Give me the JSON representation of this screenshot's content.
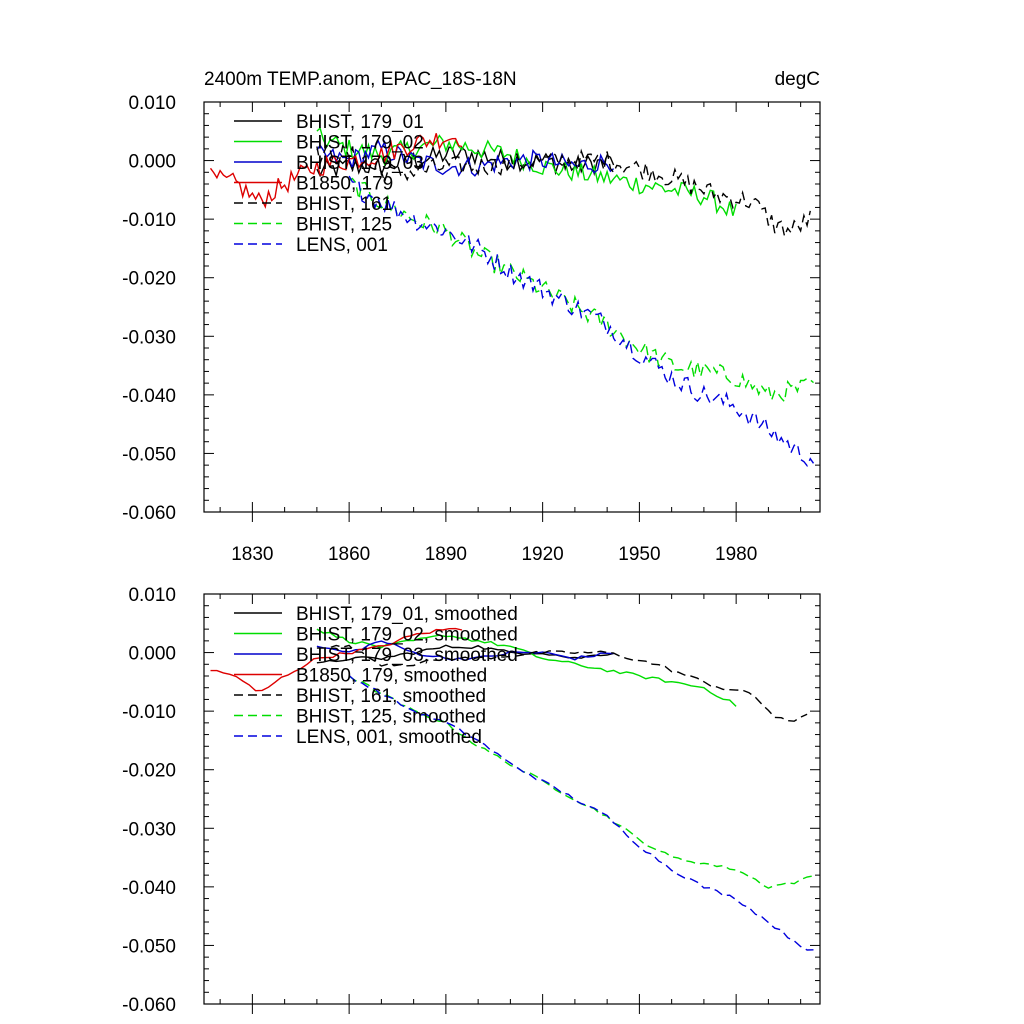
{
  "title_left": "2400m TEMP.anom, EPAC_18S-18N",
  "title_right": "degC",
  "chart_data": [
    {
      "type": "line",
      "title": "2400m TEMP.anom, EPAC_18S-18N",
      "units": "degC",
      "xlim": [
        1815,
        2006
      ],
      "ylim": [
        -0.06,
        0.01
      ],
      "x_ticks": [
        "1830",
        "1860",
        "1890",
        "1920",
        "1950",
        "1980"
      ],
      "y_ticks": [
        "0.010",
        "0.000",
        "-0.010",
        "-0.020",
        "-0.030",
        "-0.040",
        "-0.050",
        "-0.060"
      ],
      "series": [
        {
          "name": "BHIST, 179_01",
          "color": "#000000",
          "dash": "solid",
          "step": 1,
          "anchors": [
            [
              1850,
              -0.002
            ],
            [
              1860,
              -0.001
            ],
            [
              1870,
              -0.001
            ],
            [
              1880,
              0.0
            ],
            [
              1890,
              0.001
            ],
            [
              1900,
              0.001
            ],
            [
              1910,
              0.0
            ],
            [
              1920,
              0.0
            ],
            [
              1930,
              -0.001
            ],
            [
              1942,
              0.0
            ]
          ]
        },
        {
          "name": "BHIST, 179_02",
          "color": "#00dd00",
          "dash": "solid",
          "step": 1,
          "anchors": [
            [
              1850,
              0.004
            ],
            [
              1860,
              0.002
            ],
            [
              1870,
              0.001
            ],
            [
              1880,
              0.002
            ],
            [
              1890,
              0.003
            ],
            [
              1900,
              0.002
            ],
            [
              1910,
              0.001
            ],
            [
              1920,
              -0.001
            ],
            [
              1930,
              -0.002
            ],
            [
              1940,
              -0.003
            ],
            [
              1950,
              -0.004
            ],
            [
              1960,
              -0.005
            ],
            [
              1970,
              -0.006
            ],
            [
              1980,
              -0.009
            ]
          ]
        },
        {
          "name": "BHIST, 179_03",
          "color": "#0000cc",
          "dash": "solid",
          "step": 1,
          "anchors": [
            [
              1850,
              0.001
            ],
            [
              1860,
              0.0
            ],
            [
              1870,
              0.002
            ],
            [
              1880,
              0.0
            ],
            [
              1890,
              -0.001
            ],
            [
              1900,
              -0.001
            ],
            [
              1910,
              0.0
            ],
            [
              1920,
              0.0
            ],
            [
              1930,
              -0.001
            ],
            [
              1942,
              0.0
            ]
          ]
        },
        {
          "name": "B1850, 179",
          "color": "#dd0000",
          "dash": "solid",
          "step": 1,
          "anchors": [
            [
              1817,
              -0.003
            ],
            [
              1825,
              -0.004
            ],
            [
              1832,
              -0.007
            ],
            [
              1840,
              -0.004
            ],
            [
              1850,
              -0.001
            ],
            [
              1860,
              0.0
            ],
            [
              1870,
              0.001
            ],
            [
              1880,
              0.003
            ],
            [
              1890,
              0.004
            ],
            [
              1895,
              0.004
            ]
          ]
        },
        {
          "name": "BHIST, 161",
          "color": "#000000",
          "dash": "dashed",
          "step": 1,
          "anchors": [
            [
              1850,
              0.001
            ],
            [
              1860,
              0.001
            ],
            [
              1870,
              -0.002
            ],
            [
              1880,
              -0.002
            ],
            [
              1890,
              -0.001
            ],
            [
              1900,
              -0.001
            ],
            [
              1920,
              0.0
            ],
            [
              1940,
              0.0
            ],
            [
              1955,
              -0.002
            ],
            [
              1965,
              -0.004
            ],
            [
              1975,
              -0.006
            ],
            [
              1985,
              -0.007
            ],
            [
              1992,
              -0.011
            ],
            [
              1997,
              -0.012
            ],
            [
              2003,
              -0.01
            ]
          ]
        },
        {
          "name": "BHIST, 125",
          "color": "#00dd00",
          "dash": "dashed",
          "step": 1,
          "anchors": [
            [
              1860,
              -0.004
            ],
            [
              1870,
              -0.007
            ],
            [
              1880,
              -0.01
            ],
            [
              1890,
              -0.012
            ],
            [
              1900,
              -0.016
            ],
            [
              1910,
              -0.019
            ],
            [
              1920,
              -0.022
            ],
            [
              1930,
              -0.025
            ],
            [
              1940,
              -0.028
            ],
            [
              1950,
              -0.032
            ],
            [
              1960,
              -0.035
            ],
            [
              1970,
              -0.036
            ],
            [
              1980,
              -0.037
            ],
            [
              1990,
              -0.04
            ],
            [
              2000,
              -0.039
            ],
            [
              2004,
              -0.038
            ]
          ]
        },
        {
          "name": "LENS, 001",
          "color": "#0000dd",
          "dash": "dashed",
          "step": 1,
          "anchors": [
            [
              1860,
              -0.004
            ],
            [
              1870,
              -0.007
            ],
            [
              1880,
              -0.01
            ],
            [
              1890,
              -0.012
            ],
            [
              1900,
              -0.015
            ],
            [
              1910,
              -0.019
            ],
            [
              1920,
              -0.022
            ],
            [
              1930,
              -0.025
            ],
            [
              1940,
              -0.028
            ],
            [
              1950,
              -0.033
            ],
            [
              1960,
              -0.037
            ],
            [
              1970,
              -0.04
            ],
            [
              1980,
              -0.042
            ],
            [
              1990,
              -0.046
            ],
            [
              2000,
              -0.05
            ],
            [
              2004,
              -0.051
            ]
          ]
        }
      ]
    },
    {
      "type": "line",
      "title": "",
      "xlim": [
        1815,
        2006
      ],
      "ylim": [
        -0.06,
        0.01
      ],
      "y_ticks": [
        "0.010",
        "0.000",
        "-0.010",
        "-0.020",
        "-0.030",
        "-0.040",
        "-0.050",
        "-0.060"
      ],
      "series": [
        {
          "name": "BHIST, 179_01, smoothed",
          "color": "#000000",
          "dash": "solid",
          "step": 2,
          "anchors": [
            [
              1850,
              -0.002
            ],
            [
              1860,
              -0.001
            ],
            [
              1870,
              -0.001
            ],
            [
              1880,
              0.0
            ],
            [
              1890,
              0.001
            ],
            [
              1900,
              0.001
            ],
            [
              1910,
              0.0
            ],
            [
              1920,
              0.0
            ],
            [
              1930,
              -0.001
            ],
            [
              1942,
              0.0
            ]
          ]
        },
        {
          "name": "BHIST, 179_02, smoothed",
          "color": "#00dd00",
          "dash": "solid",
          "step": 2,
          "anchors": [
            [
              1850,
              0.004
            ],
            [
              1860,
              0.002
            ],
            [
              1870,
              0.001
            ],
            [
              1880,
              0.002
            ],
            [
              1890,
              0.003
            ],
            [
              1900,
              0.002
            ],
            [
              1910,
              0.001
            ],
            [
              1920,
              -0.001
            ],
            [
              1930,
              -0.002
            ],
            [
              1940,
              -0.003
            ],
            [
              1950,
              -0.004
            ],
            [
              1960,
              -0.005
            ],
            [
              1970,
              -0.006
            ],
            [
              1980,
              -0.009
            ]
          ]
        },
        {
          "name": "BHIST, 179_03, smoothed",
          "color": "#0000cc",
          "dash": "solid",
          "step": 2,
          "anchors": [
            [
              1850,
              0.001
            ],
            [
              1860,
              0.0
            ],
            [
              1870,
              0.002
            ],
            [
              1880,
              0.0
            ],
            [
              1890,
              -0.001
            ],
            [
              1900,
              -0.001
            ],
            [
              1910,
              0.0
            ],
            [
              1920,
              0.0
            ],
            [
              1930,
              -0.001
            ],
            [
              1942,
              0.0
            ]
          ]
        },
        {
          "name": "B1850, 179, smoothed",
          "color": "#dd0000",
          "dash": "solid",
          "step": 2,
          "anchors": [
            [
              1817,
              -0.003
            ],
            [
              1825,
              -0.004
            ],
            [
              1832,
              -0.007
            ],
            [
              1840,
              -0.004
            ],
            [
              1850,
              -0.001
            ],
            [
              1860,
              0.0
            ],
            [
              1870,
              0.001
            ],
            [
              1880,
              0.003
            ],
            [
              1890,
              0.004
            ],
            [
              1895,
              0.004
            ]
          ]
        },
        {
          "name": "BHIST, 161, smoothed",
          "color": "#000000",
          "dash": "dashed",
          "step": 2,
          "anchors": [
            [
              1850,
              0.001
            ],
            [
              1860,
              0.001
            ],
            [
              1870,
              -0.002
            ],
            [
              1880,
              -0.002
            ],
            [
              1890,
              -0.001
            ],
            [
              1900,
              -0.001
            ],
            [
              1920,
              0.0
            ],
            [
              1940,
              0.0
            ],
            [
              1955,
              -0.002
            ],
            [
              1965,
              -0.004
            ],
            [
              1975,
              -0.006
            ],
            [
              1985,
              -0.007
            ],
            [
              1992,
              -0.011
            ],
            [
              1997,
              -0.012
            ],
            [
              2003,
              -0.01
            ]
          ]
        },
        {
          "name": "BHIST, 125, smoothed",
          "color": "#00dd00",
          "dash": "dashed",
          "step": 2,
          "anchors": [
            [
              1860,
              -0.004
            ],
            [
              1870,
              -0.007
            ],
            [
              1880,
              -0.01
            ],
            [
              1890,
              -0.012
            ],
            [
              1900,
              -0.016
            ],
            [
              1910,
              -0.019
            ],
            [
              1920,
              -0.022
            ],
            [
              1930,
              -0.025
            ],
            [
              1940,
              -0.028
            ],
            [
              1950,
              -0.032
            ],
            [
              1960,
              -0.035
            ],
            [
              1970,
              -0.036
            ],
            [
              1980,
              -0.037
            ],
            [
              1990,
              -0.04
            ],
            [
              2000,
              -0.039
            ],
            [
              2004,
              -0.038
            ]
          ]
        },
        {
          "name": "LENS, 001, smoothed",
          "color": "#0000dd",
          "dash": "dashed",
          "step": 2,
          "anchors": [
            [
              1860,
              -0.004
            ],
            [
              1870,
              -0.007
            ],
            [
              1880,
              -0.01
            ],
            [
              1890,
              -0.012
            ],
            [
              1900,
              -0.015
            ],
            [
              1910,
              -0.019
            ],
            [
              1920,
              -0.022
            ],
            [
              1930,
              -0.025
            ],
            [
              1940,
              -0.028
            ],
            [
              1950,
              -0.033
            ],
            [
              1960,
              -0.037
            ],
            [
              1970,
              -0.04
            ],
            [
              1980,
              -0.042
            ],
            [
              1990,
              -0.046
            ],
            [
              2000,
              -0.05
            ],
            [
              2004,
              -0.051
            ]
          ]
        }
      ]
    }
  ]
}
